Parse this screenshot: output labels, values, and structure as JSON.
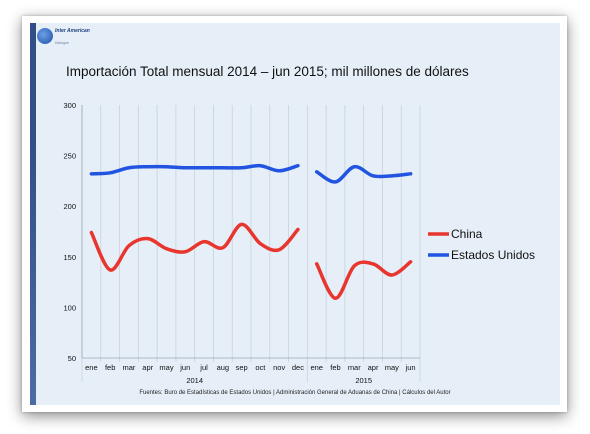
{
  "logo": {
    "text": "Inter American",
    "sub": "Dialogue"
  },
  "title": "Importación Total mensual 2014 – jun 2015; mil millones de dólares",
  "source": "Fuentes: Buro de Estadísticas de Estados Unidos | Administración General de Aduanas de China | Cálculos del Autor",
  "colors": {
    "china": "#e8362e",
    "usa": "#2154e0",
    "background": "#e6eff8",
    "grid": "#c8d2dc"
  },
  "chart_data": {
    "type": "line",
    "title": "Importación Total mensual 2014 – jun 2015; mil millones de dólares",
    "xlabel": "",
    "ylabel": "",
    "ylim": [
      50,
      300
    ],
    "yticks": [
      50,
      100,
      150,
      200,
      250,
      300
    ],
    "grid": "vertical",
    "legend_position": "right",
    "categories": [
      "ene",
      "feb",
      "mar",
      "apr",
      "may",
      "jun",
      "jul",
      "aug",
      "sep",
      "oct",
      "nov",
      "dec",
      "ene",
      "feb",
      "mar",
      "apr",
      "may",
      "jun"
    ],
    "year_labels": [
      {
        "label": "2014",
        "from_index": 0,
        "to_index": 11
      },
      {
        "label": "2015",
        "from_index": 12,
        "to_index": 17
      }
    ],
    "break_after_index": 11,
    "series": [
      {
        "name": "China",
        "values": [
          174,
          137,
          161,
          168,
          158,
          155,
          165,
          159,
          182,
          163,
          157,
          177,
          143,
          109,
          141,
          143,
          132,
          145
        ]
      },
      {
        "name": "Estados Unidos",
        "values": [
          232,
          233,
          238,
          239,
          239,
          238,
          238,
          238,
          238,
          240,
          235,
          240,
          234,
          224,
          239,
          230,
          230,
          232
        ]
      }
    ]
  }
}
